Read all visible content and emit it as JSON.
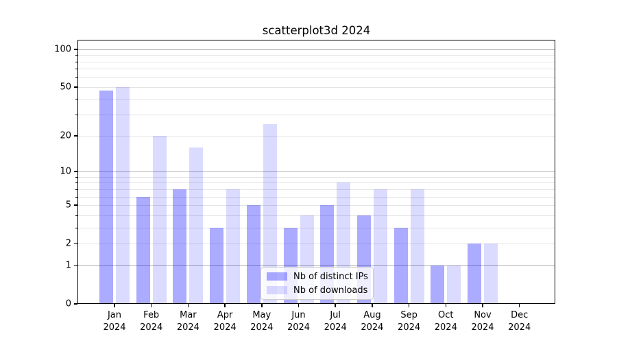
{
  "chart_data": {
    "type": "bar",
    "title": "scatterplot3d 2024",
    "year": "2024",
    "categories": [
      "Jan",
      "Feb",
      "Mar",
      "Apr",
      "May",
      "Jun",
      "Jul",
      "Aug",
      "Sep",
      "Oct",
      "Nov",
      "Dec"
    ],
    "series": [
      {
        "name": "Nb of distinct IPs",
        "color": "rgba(0,0,255,0.33)",
        "color_hex_approx": "#abacf7",
        "values": [
          47,
          6,
          7,
          3,
          5,
          3,
          5,
          4,
          3,
          1,
          2,
          0
        ]
      },
      {
        "name": "Nb of downloads",
        "color": "rgba(0,0,255,0.14)",
        "color_hex_approx": "#dcdcfb",
        "values": [
          50,
          20,
          16,
          7,
          25,
          4,
          8,
          7,
          7,
          1,
          2,
          0
        ]
      }
    ],
    "y_axis": {
      "scale": "log10(1+y)",
      "ylim": [
        0,
        119
      ],
      "ticks": [
        100,
        50,
        20,
        10,
        5,
        2,
        1,
        0
      ],
      "major_gridlines": [
        100,
        10,
        1
      ],
      "minor_gridlines": [
        90,
        80,
        70,
        60,
        40,
        30,
        9,
        8,
        7,
        6,
        4,
        3
      ]
    },
    "x_axis": {
      "tick_label_lines": 2
    },
    "legend": {
      "position": "lower-center",
      "labels": [
        "Nb of distinct IPs",
        "Nb of downloads"
      ]
    },
    "grid": true,
    "colors": {
      "background": "#ffffff",
      "spine": "#000000",
      "grid_major": "#b0b0b0",
      "grid_minor": "#e4e4e4",
      "legend_border": "#cccccc"
    }
  }
}
